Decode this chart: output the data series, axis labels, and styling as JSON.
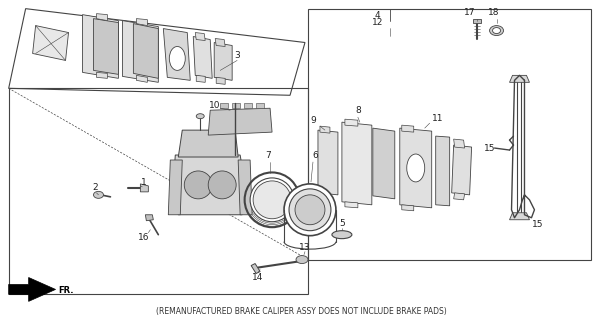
{
  "footer_text": "(REMANUFACTURED BRAKE CALIPER ASSY DOES NOT INCLUDE BRAKE PADS)",
  "bg_color": "#ffffff",
  "line_color": "#444444",
  "fig_width": 6.02,
  "fig_height": 3.2,
  "dpi": 100
}
